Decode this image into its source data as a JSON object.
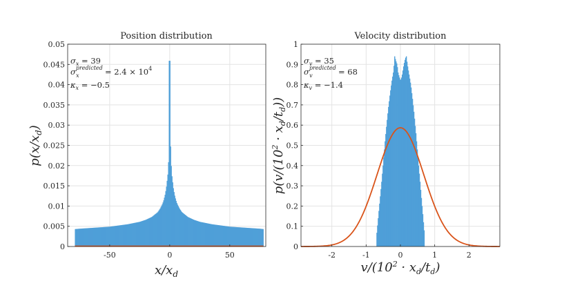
{
  "chart_data": [
    {
      "type": "histogram",
      "title": "Position distribution",
      "xlabel": "x/x_d",
      "ylabel": "p(x/x_d)",
      "xlim": [
        -85,
        80
      ],
      "ylim": [
        0,
        0.05
      ],
      "xticks": [
        -50,
        0,
        50
      ],
      "xtick_labels": [
        "-50",
        "0",
        "50"
      ],
      "yticks": [
        0,
        0.005,
        0.01,
        0.015,
        0.02,
        0.025,
        0.03,
        0.035,
        0.04,
        0.045,
        0.05
      ],
      "ytick_labels": [
        "0",
        "0.005",
        "0.01",
        "0.015",
        "0.02",
        "0.025",
        "0.03",
        "0.035",
        "0.04",
        "0.045",
        "0.05"
      ],
      "grid": true,
      "histogram": {
        "color": "#4f9fd8",
        "x": [
          -79,
          -75,
          -70,
          -65,
          -60,
          -55,
          -50,
          -45,
          -40,
          -35,
          -30,
          -25,
          -20,
          -15,
          -10,
          -8,
          -6,
          -5,
          -4,
          -3,
          -2,
          -1.5,
          -1,
          -0.5,
          -0.2,
          0,
          0.2,
          0.5,
          1,
          1.5,
          2,
          3,
          4,
          5,
          6,
          8,
          10,
          15,
          20,
          25,
          30,
          35,
          40,
          45,
          50,
          55,
          60,
          65,
          70,
          75,
          78
        ],
        "density": [
          0.0043,
          0.0044,
          0.0045,
          0.0046,
          0.0047,
          0.0048,
          0.0049,
          0.0051,
          0.0053,
          0.0055,
          0.0058,
          0.0061,
          0.0066,
          0.0073,
          0.0085,
          0.0094,
          0.0106,
          0.0115,
          0.0127,
          0.0143,
          0.0168,
          0.0182,
          0.0213,
          0.0262,
          0.033,
          0.0459,
          0.033,
          0.0262,
          0.0213,
          0.0182,
          0.0168,
          0.0143,
          0.0127,
          0.0115,
          0.0106,
          0.0094,
          0.0085,
          0.0073,
          0.0066,
          0.0061,
          0.0058,
          0.0055,
          0.0053,
          0.0051,
          0.0049,
          0.0048,
          0.0047,
          0.0046,
          0.0045,
          0.0044,
          0.0043
        ]
      },
      "predicted_curve": {
        "color": "#d95319",
        "description": "flat near zero",
        "x": [
          -79,
          78
        ],
        "y": [
          0.0,
          0.0
        ]
      },
      "annotations": [
        {
          "symbol": "σ",
          "subscript": "x",
          "superscript": "",
          "rest": " = 39"
        },
        {
          "symbol": "σ",
          "subscript": "x",
          "superscript": "predicted",
          "rest": " = 2.4 × 10",
          "power": "4"
        },
        {
          "symbol": "κ",
          "subscript": "x",
          "superscript": "",
          "rest": " = −0.5"
        }
      ]
    },
    {
      "type": "histogram",
      "title": "Velocity distribution",
      "xlabel": "v/(10^2 · x_d/t_d)",
      "ylabel": "p(v/(10^2 · x_d/t_d))",
      "xlim": [
        -2.9,
        2.9
      ],
      "ylim": [
        0,
        1
      ],
      "xticks": [
        -2,
        -1,
        0,
        1,
        2
      ],
      "xtick_labels": [
        "-2",
        "-1",
        "0",
        "1",
        "2"
      ],
      "yticks": [
        0,
        0.1,
        0.2,
        0.3,
        0.4,
        0.5,
        0.6,
        0.7,
        0.8,
        0.9,
        1
      ],
      "ytick_labels": [
        "0",
        "0.1",
        "0.2",
        "0.3",
        "0.4",
        "0.5",
        "0.6",
        "0.7",
        "0.8",
        "0.9",
        "1"
      ],
      "grid": true,
      "histogram": {
        "color": "#4f9fd8",
        "x": [
          -0.7,
          -0.65,
          -0.6,
          -0.55,
          -0.5,
          -0.45,
          -0.4,
          -0.35,
          -0.3,
          -0.25,
          -0.2,
          -0.17,
          -0.14,
          -0.1,
          -0.07,
          -0.04,
          0,
          0.04,
          0.07,
          0.1,
          0.14,
          0.17,
          0.2,
          0.25,
          0.3,
          0.35,
          0.4,
          0.45,
          0.5,
          0.55,
          0.6,
          0.65,
          0.7
        ],
        "density": [
          0.05,
          0.14,
          0.23,
          0.32,
          0.42,
          0.52,
          0.61,
          0.69,
          0.76,
          0.82,
          0.87,
          0.94,
          0.92,
          0.9,
          0.86,
          0.84,
          0.82,
          0.84,
          0.87,
          0.9,
          0.93,
          0.94,
          0.9,
          0.85,
          0.8,
          0.73,
          0.65,
          0.56,
          0.46,
          0.36,
          0.26,
          0.16,
          0.06
        ]
      },
      "predicted_curve": {
        "color": "#d95319",
        "model": "gaussian",
        "mean": 0,
        "std": 0.68,
        "peak": 0.587
      },
      "annotations": [
        {
          "symbol": "σ",
          "subscript": "v",
          "superscript": "",
          "rest": " = 35"
        },
        {
          "symbol": "σ",
          "subscript": "v",
          "superscript": "predicted",
          "rest": " = 68"
        },
        {
          "symbol": "κ",
          "subscript": "v",
          "superscript": "",
          "rest": " = −1.4"
        }
      ]
    }
  ]
}
